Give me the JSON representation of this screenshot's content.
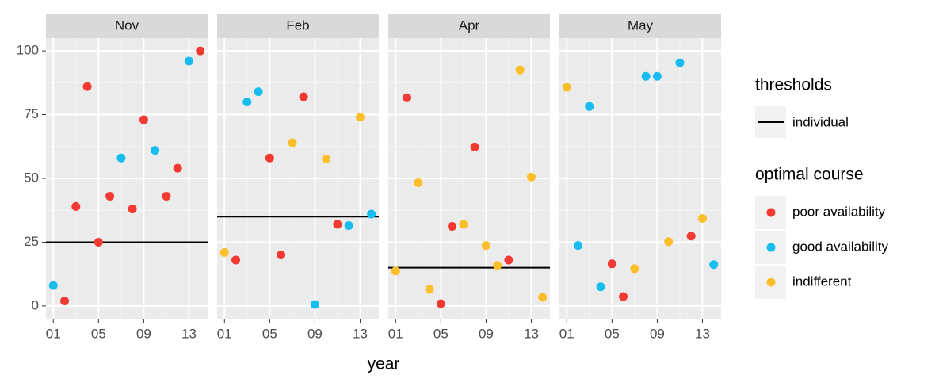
{
  "chart_data": {
    "type": "scatter",
    "xlabel": "year",
    "xlim": [
      0.35,
      14.65
    ],
    "xticks": [
      {
        "value": 1,
        "label": "01"
      },
      {
        "value": 5,
        "label": "05"
      },
      {
        "value": 9,
        "label": "09"
      },
      {
        "value": 13,
        "label": "13"
      }
    ],
    "ylim": [
      -5,
      105
    ],
    "yticks": [
      0,
      25,
      50,
      75,
      100
    ],
    "grid": true,
    "legend_position": "right",
    "threshold_legend": {
      "title": "thresholds",
      "name": "individual",
      "color": "#000000"
    },
    "legend_title": "optimal course",
    "series": [
      {
        "name": "poor availability",
        "color": "#f23a32"
      },
      {
        "name": "good availability",
        "color": "#18bdf0"
      },
      {
        "name": "indifferent",
        "color": "#fbbf2b"
      }
    ],
    "panels": [
      {
        "title": "Nov",
        "threshold": 25,
        "series": [
          {
            "x": [
              2,
              3,
              4,
              5,
              6,
              8,
              9,
              11,
              12,
              14
            ],
            "values": [
              2,
              39,
              86,
              25,
              43,
              38,
              73,
              43,
              54,
              100
            ]
          },
          {
            "x": [
              1,
              7,
              10,
              13
            ],
            "values": [
              8,
              58,
              61,
              96
            ]
          },
          {
            "x": [],
            "values": []
          }
        ]
      },
      {
        "title": "Feb",
        "threshold": 35,
        "series": [
          {
            "x": [
              2,
              5,
              6,
              8,
              11
            ],
            "values": [
              18,
              58,
              20,
              82,
              32
            ]
          },
          {
            "x": [
              3,
              4,
              9,
              12,
              14
            ],
            "values": [
              80,
              84,
              0.6,
              31.5,
              36
            ]
          },
          {
            "x": [
              1,
              7,
              10,
              13
            ],
            "values": [
              21,
              64,
              57.6,
              74
            ]
          }
        ]
      },
      {
        "title": "Apr",
        "threshold": 15,
        "series": [
          {
            "x": [
              2,
              5,
              6,
              8,
              11
            ],
            "values": [
              81.6,
              0.9,
              31.2,
              62.3,
              18
            ]
          },
          {
            "x": [],
            "values": []
          },
          {
            "x": [
              1,
              3,
              4,
              7,
              9,
              10,
              12,
              13,
              14
            ],
            "values": [
              13.7,
              48.3,
              6.5,
              32,
              23.7,
              15.9,
              92.5,
              50.5,
              3.4
            ]
          }
        ]
      },
      {
        "title": "May",
        "threshold": null,
        "series": [
          {
            "x": [
              5,
              6,
              12
            ],
            "values": [
              16.5,
              3.7,
              27.4
            ]
          },
          {
            "x": [
              2,
              3,
              4,
              8,
              9,
              11,
              14
            ],
            "values": [
              23.7,
              78.2,
              7.5,
              90,
              90,
              95.3,
              16.2
            ]
          },
          {
            "x": [
              1,
              7,
              10,
              13
            ],
            "values": [
              85.7,
              14.6,
              25.2,
              34.3
            ]
          }
        ]
      }
    ]
  }
}
